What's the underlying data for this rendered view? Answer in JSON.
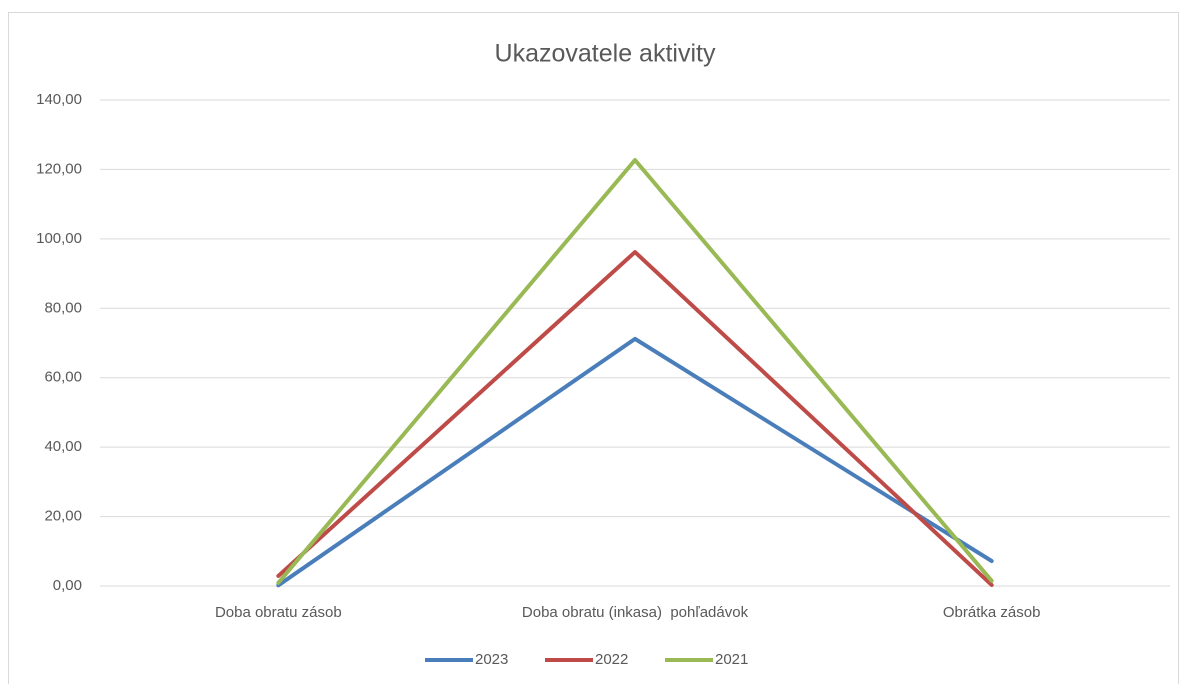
{
  "chart_data": {
    "type": "line",
    "title": "Ukazovatele aktivity",
    "categories": [
      "Doba obratu zásob",
      "Doba obratu (inkasa)  pohľadávok",
      "Obrátka zásob"
    ],
    "series": [
      {
        "name": "2023",
        "color": "#4a7ebb",
        "values": [
          0.2,
          71.2,
          7.2
        ]
      },
      {
        "name": "2022",
        "color": "#be4b48",
        "values": [
          2.9,
          96.2,
          0.3
        ]
      },
      {
        "name": "2021",
        "color": "#98b954",
        "values": [
          0.9,
          122.7,
          1.5
        ]
      }
    ],
    "ylim": [
      0,
      140
    ],
    "yticks": [
      {
        "value": 0,
        "label": "0,00"
      },
      {
        "value": 20,
        "label": "20,00"
      },
      {
        "value": 40,
        "label": "40,00"
      },
      {
        "value": 60,
        "label": "60,00"
      },
      {
        "value": 80,
        "label": "80,00"
      },
      {
        "value": 100,
        "label": "100,00"
      },
      {
        "value": 120,
        "label": "120,00"
      },
      {
        "value": 140,
        "label": "140,00"
      }
    ],
    "grid": true,
    "legend": "bottom"
  }
}
